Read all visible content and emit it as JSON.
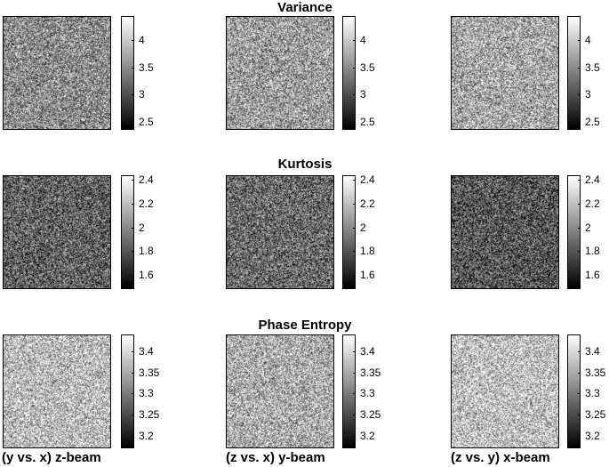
{
  "rows": [
    {
      "title": "Variance",
      "ticks": [
        "4",
        "3.5",
        "3",
        "2.5"
      ],
      "tick_values": [
        4,
        3.5,
        3,
        2.5
      ],
      "clim": [
        2.35,
        4.45
      ],
      "mean_gray": [
        0.55,
        0.62,
        0.66
      ]
    },
    {
      "title": "Kurtosis",
      "ticks": [
        "2.4",
        "2.2",
        "2",
        "1.8",
        "1.6"
      ],
      "tick_values": [
        2.4,
        2.2,
        2,
        1.8,
        1.6
      ],
      "clim": [
        1.48,
        2.44
      ],
      "mean_gray": [
        0.38,
        0.42,
        0.34
      ]
    },
    {
      "title": "Phase Entropy",
      "ticks": [
        "3.4",
        "3.35",
        "3.3",
        "3.25",
        "3.2"
      ],
      "tick_values": [
        3.4,
        3.35,
        3.3,
        3.25,
        3.2
      ],
      "clim": [
        3.17,
        3.44
      ],
      "mean_gray": [
        0.74,
        0.68,
        0.76
      ]
    }
  ],
  "columns": [
    "(y vs. x) z-beam",
    "(z vs. x) y-beam",
    "(z vs. y) x-beam"
  ],
  "chart_data": {
    "type": "heatmap",
    "grid": "3x3 panels",
    "row_titles": [
      "Variance",
      "Kurtosis",
      "Phase Entropy"
    ],
    "column_labels": [
      "(y vs. x) z-beam",
      "(z vs. x) y-beam",
      "(z vs. y) x-beam"
    ],
    "colormap": "gray",
    "colorbar_ranges": [
      [
        2.35,
        4.45
      ],
      [
        1.48,
        2.44
      ],
      [
        3.17,
        3.44
      ]
    ]
  }
}
